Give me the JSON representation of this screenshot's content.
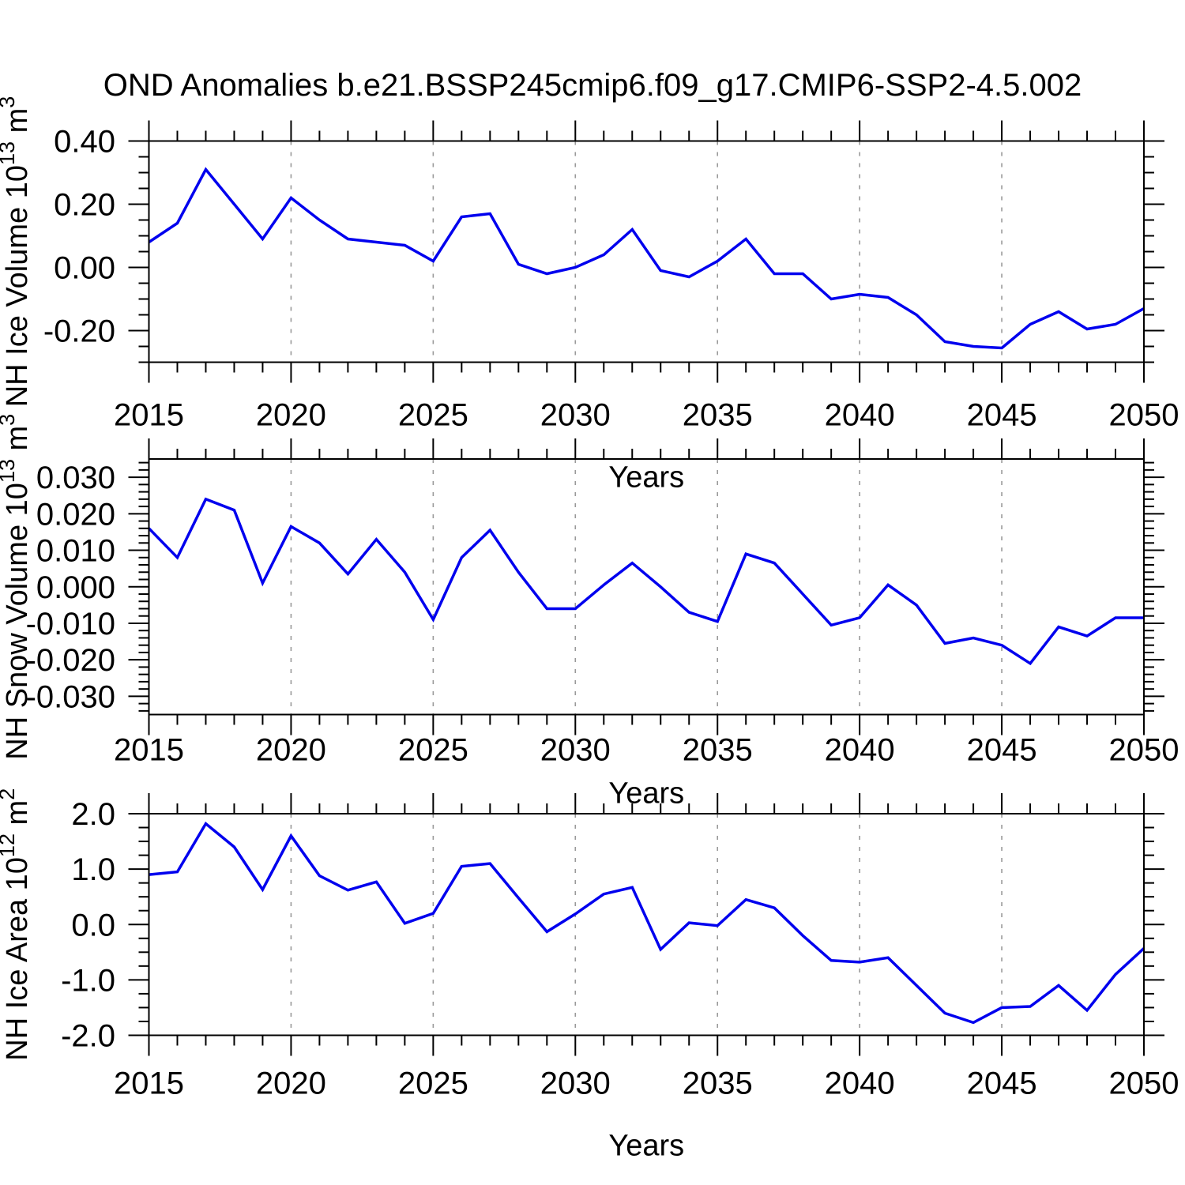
{
  "title": "OND Anomalies b.e21.BSSP245cmip6.f09_g17.CMIP6-SSP2-4.5.002",
  "colors": {
    "line": "#0000ee",
    "grid": "#999999",
    "axis": "#000000"
  },
  "chart_data": [
    {
      "id": "nh-ice-volume",
      "type": "line",
      "ylabel_plain": "NH Ice Volume 10^13 m^3",
      "ylabel_parts": [
        {
          "t": "NH Ice Volume 10"
        },
        {
          "t": "13",
          "sup": true
        },
        {
          "t": " m"
        },
        {
          "t": "3",
          "sup": true
        }
      ],
      "xlabel": "Years",
      "x": [
        2015,
        2016,
        2017,
        2018,
        2019,
        2020,
        2021,
        2022,
        2023,
        2024,
        2025,
        2026,
        2027,
        2028,
        2029,
        2030,
        2031,
        2032,
        2033,
        2034,
        2035,
        2036,
        2037,
        2038,
        2039,
        2040,
        2041,
        2042,
        2043,
        2044,
        2045,
        2046,
        2047,
        2048,
        2049,
        2050
      ],
      "values": [
        0.08,
        0.14,
        0.31,
        0.2,
        0.09,
        0.22,
        0.15,
        0.09,
        0.08,
        0.07,
        0.02,
        0.16,
        0.17,
        0.01,
        -0.02,
        0.0,
        0.04,
        0.12,
        -0.01,
        -0.03,
        0.02,
        0.09,
        -0.02,
        -0.02,
        -0.1,
        -0.085,
        -0.095,
        -0.15,
        -0.235,
        -0.25,
        -0.255,
        -0.18,
        -0.14,
        -0.195,
        -0.18,
        -0.13
      ],
      "xlim": [
        2015,
        2050
      ],
      "ylim": [
        -0.3,
        0.4
      ],
      "yticks": [
        0.4,
        0.2,
        0.0,
        -0.2
      ],
      "ytick_labels": [
        "0.40",
        "0.20",
        "0.00",
        "-0.20"
      ],
      "y_minor_step": 0.05,
      "y_major_step": 0.2,
      "xticks": [
        2015,
        2020,
        2025,
        2030,
        2035,
        2040,
        2045,
        2050
      ],
      "xtick_labels": [
        "2015",
        "2020",
        "2025",
        "2030",
        "2035",
        "2040",
        "2045",
        "2050"
      ],
      "x_minor_step": 1,
      "grid_x": [
        2020,
        2025,
        2030,
        2035,
        2040,
        2045
      ],
      "grid": "vertical-dashed"
    },
    {
      "id": "nh-snow-volume",
      "type": "line",
      "ylabel_plain": "NH Snow Volume 10^13 m^3",
      "ylabel_parts": [
        {
          "t": "NH Snow Volume 10"
        },
        {
          "t": "13",
          "sup": true
        },
        {
          "t": " m"
        },
        {
          "t": "3",
          "sup": true
        }
      ],
      "xlabel": "Years",
      "x": [
        2015,
        2016,
        2017,
        2018,
        2019,
        2020,
        2021,
        2022,
        2023,
        2024,
        2025,
        2026,
        2027,
        2028,
        2029,
        2030,
        2031,
        2032,
        2033,
        2034,
        2035,
        2036,
        2037,
        2038,
        2039,
        2040,
        2041,
        2042,
        2043,
        2044,
        2045,
        2046,
        2047,
        2048,
        2049,
        2050
      ],
      "values": [
        0.016,
        0.008,
        0.024,
        0.021,
        0.001,
        0.0165,
        0.012,
        0.0035,
        0.013,
        0.004,
        -0.009,
        0.008,
        0.0155,
        0.004,
        -0.006,
        -0.006,
        0.0005,
        0.0065,
        0.0,
        -0.007,
        -0.0095,
        0.009,
        0.0065,
        -0.002,
        -0.0105,
        -0.0085,
        0.0005,
        -0.005,
        -0.0155,
        -0.014,
        -0.016,
        -0.021,
        -0.011,
        -0.0135,
        -0.0085,
        -0.0085
      ],
      "xlim": [
        2015,
        2050
      ],
      "ylim": [
        -0.035,
        0.035
      ],
      "yticks": [
        0.03,
        0.02,
        0.01,
        0.0,
        -0.01,
        -0.02,
        -0.03
      ],
      "ytick_labels": [
        "0.030",
        "0.020",
        "0.010",
        "0.000",
        "-0.010",
        "-0.020",
        "-0.030"
      ],
      "y_minor_step": 0.002,
      "y_major_step": 0.01,
      "xticks": [
        2015,
        2020,
        2025,
        2030,
        2035,
        2040,
        2045,
        2050
      ],
      "xtick_labels": [
        "2015",
        "2020",
        "2025",
        "2030",
        "2035",
        "2040",
        "2045",
        "2050"
      ],
      "x_minor_step": 1,
      "grid_x": [
        2020,
        2025,
        2030,
        2035,
        2040,
        2045
      ],
      "grid": "vertical-dashed"
    },
    {
      "id": "nh-ice-area",
      "type": "line",
      "ylabel_plain": "NH Ice Area 10^12 m^2",
      "ylabel_parts": [
        {
          "t": "NH Ice Area 10"
        },
        {
          "t": "12",
          "sup": true
        },
        {
          "t": " m"
        },
        {
          "t": "2",
          "sup": true
        }
      ],
      "xlabel": "Years",
      "x": [
        2015,
        2016,
        2017,
        2018,
        2019,
        2020,
        2021,
        2022,
        2023,
        2024,
        2025,
        2026,
        2027,
        2028,
        2029,
        2030,
        2031,
        2032,
        2033,
        2034,
        2035,
        2036,
        2037,
        2038,
        2039,
        2040,
        2041,
        2042,
        2043,
        2044,
        2045,
        2046,
        2047,
        2048,
        2049,
        2050
      ],
      "values": [
        0.9,
        0.95,
        1.82,
        1.4,
        0.63,
        1.6,
        0.88,
        0.62,
        0.77,
        0.02,
        0.2,
        1.05,
        1.1,
        0.48,
        -0.13,
        0.19,
        0.55,
        0.67,
        -0.45,
        0.03,
        -0.02,
        0.45,
        0.3,
        -0.2,
        -0.65,
        -0.68,
        -0.6,
        -1.1,
        -1.6,
        -1.77,
        -1.5,
        -1.48,
        -1.1,
        -1.55,
        -0.9,
        -0.43
      ],
      "xlim": [
        2015,
        2050
      ],
      "ylim": [
        -2.0,
        2.0
      ],
      "yticks": [
        2.0,
        1.0,
        0.0,
        -1.0,
        -2.0
      ],
      "ytick_labels": [
        "2.0",
        "1.0",
        "0.0",
        "-1.0",
        "-2.0"
      ],
      "y_minor_step": 0.25,
      "y_major_step": 1.0,
      "xticks": [
        2015,
        2020,
        2025,
        2030,
        2035,
        2040,
        2045,
        2050
      ],
      "xtick_labels": [
        "2015",
        "2020",
        "2025",
        "2030",
        "2035",
        "2040",
        "2045",
        "2050"
      ],
      "x_minor_step": 1,
      "grid_x": [
        2020,
        2025,
        2030,
        2035,
        2040,
        2045
      ],
      "grid": "vertical-dashed"
    }
  ]
}
